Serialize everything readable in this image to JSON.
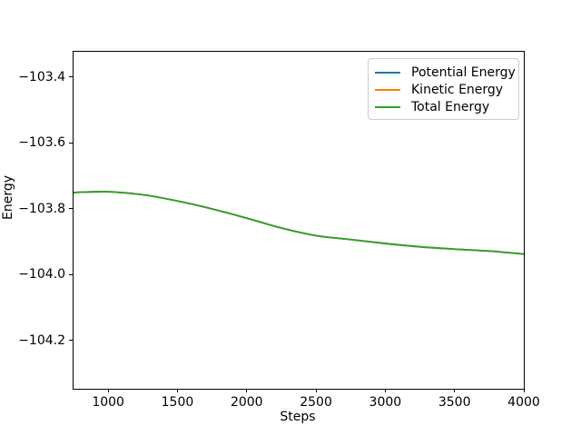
{
  "figure": {
    "background": "#ffffff",
    "spine_color": "#000000",
    "text_color": "#000000"
  },
  "chart_data": {
    "type": "line",
    "title": "",
    "xlabel": "Steps",
    "ylabel": "Energy",
    "grid": false,
    "legend_position": "upper right",
    "xlim": [
      750,
      4000
    ],
    "ylim": [
      -104.347,
      -103.324
    ],
    "xticks": [
      1000,
      1500,
      2000,
      2500,
      3000,
      3500,
      4000
    ],
    "xtick_labels": [
      "1000",
      "1500",
      "2000",
      "2500",
      "3000",
      "3500",
      "4000"
    ],
    "yticks": [
      -103.4,
      -103.6,
      -103.8,
      -104.0,
      -104.2
    ],
    "ytick_labels": [
      "−103.4",
      "−103.6",
      "−103.8",
      "−104.0",
      "−104.2"
    ],
    "x": [
      750,
      1000,
      1250,
      1500,
      1750,
      2000,
      2250,
      2500,
      2750,
      3000,
      3250,
      3500,
      3750,
      4000
    ],
    "series": [
      {
        "name": "Potential Energy",
        "color": "#1f77b4",
        "values": [
          -103.751,
          -103.749,
          -103.758,
          -103.777,
          -103.801,
          -103.829,
          -103.859,
          -103.882,
          -103.894,
          -103.906,
          -103.916,
          -103.923,
          -103.929,
          -103.938
        ]
      },
      {
        "name": "Kinetic Energy",
        "color": "#ff7f0e",
        "values": [
          -103.751,
          -103.749,
          -103.758,
          -103.777,
          -103.801,
          -103.829,
          -103.859,
          -103.882,
          -103.894,
          -103.906,
          -103.916,
          -103.923,
          -103.929,
          -103.938
        ]
      },
      {
        "name": "Total Energy",
        "color": "#2ca02c",
        "values": [
          -103.751,
          -103.749,
          -103.758,
          -103.777,
          -103.801,
          -103.829,
          -103.859,
          -103.882,
          -103.894,
          -103.906,
          -103.916,
          -103.923,
          -103.929,
          -103.938
        ]
      }
    ]
  }
}
